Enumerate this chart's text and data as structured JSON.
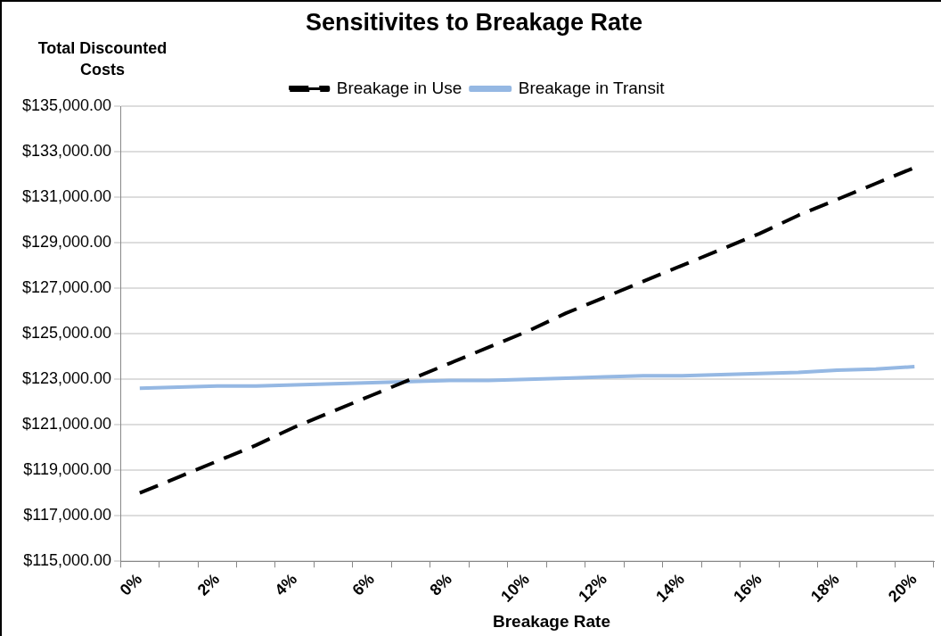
{
  "chart_data": {
    "type": "line",
    "title": "Sensitivites to Breakage Rate",
    "xlabel": "Breakage Rate",
    "ylabel": "Total Discounted Costs",
    "categories": [
      "0%",
      null,
      "2%",
      null,
      "4%",
      null,
      "6%",
      null,
      "8%",
      null,
      "10%",
      null,
      "12%",
      null,
      "14%",
      null,
      "16%",
      null,
      "18%",
      null,
      "20%"
    ],
    "series": [
      {
        "name": "Breakage in Use",
        "color": "#000000",
        "line_style": "dashed",
        "values": [
          118000,
          118700,
          119400,
          120100,
          120900,
          121600,
          122300,
          123000,
          123700,
          124400,
          125100,
          125900,
          126600,
          127300,
          128000,
          128700,
          129400,
          130200,
          130900,
          131600,
          132300
        ]
      },
      {
        "name": "Breakage in Transit",
        "color": "#95b8e3",
        "line_style": "solid",
        "values": [
          122600,
          122650,
          122700,
          122700,
          122750,
          122800,
          122850,
          122900,
          122950,
          122950,
          123000,
          123050,
          123100,
          123150,
          123150,
          123200,
          123250,
          123300,
          123400,
          123450,
          123550
        ]
      }
    ],
    "ylim": [
      115000,
      135000
    ],
    "yticks": [
      {
        "value": 115000,
        "label": "$115,000.00"
      },
      {
        "value": 117000,
        "label": "$117,000.00"
      },
      {
        "value": 119000,
        "label": "$119,000.00"
      },
      {
        "value": 121000,
        "label": "$121,000.00"
      },
      {
        "value": 123000,
        "label": "$123,000.00"
      },
      {
        "value": 125000,
        "label": "$125,000.00"
      },
      {
        "value": 127000,
        "label": "$127,000.00"
      },
      {
        "value": 129000,
        "label": "$129,000.00"
      },
      {
        "value": 131000,
        "label": "$131,000.00"
      },
      {
        "value": 133000,
        "label": "$133,000.00"
      },
      {
        "value": 135000,
        "label": "$135,000.00"
      }
    ],
    "grid": "y",
    "legend": "top",
    "marker": "none"
  }
}
